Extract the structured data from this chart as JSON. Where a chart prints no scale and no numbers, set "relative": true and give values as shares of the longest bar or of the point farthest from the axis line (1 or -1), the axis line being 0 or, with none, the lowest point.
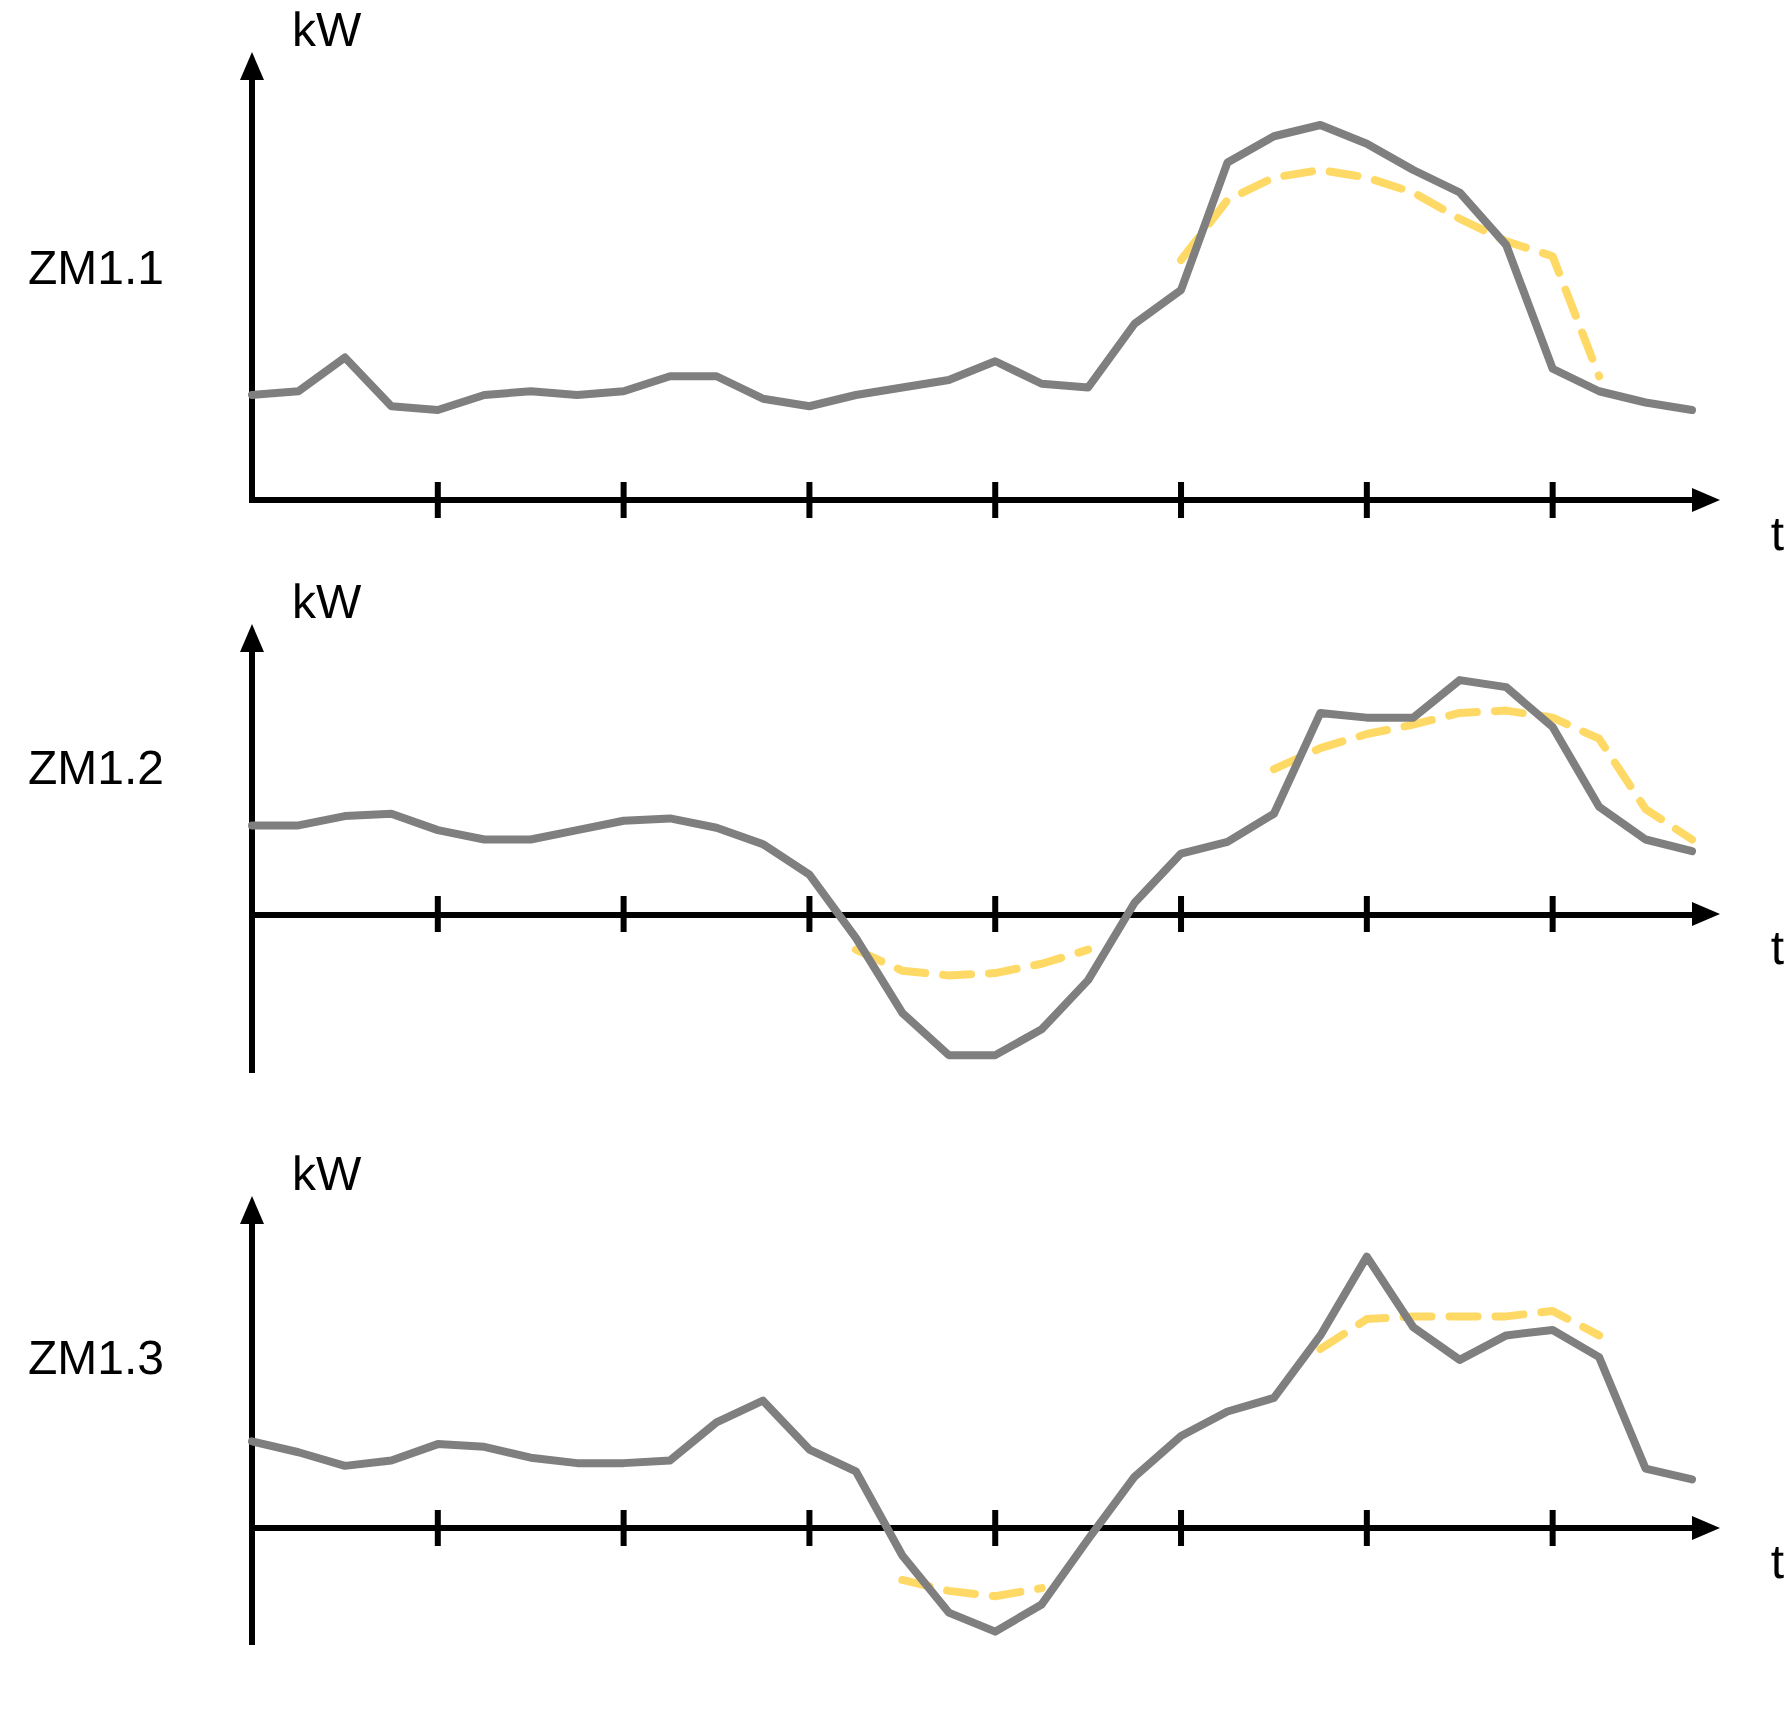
{
  "chart_data": [
    {
      "type": "line",
      "title": "ZM1.1",
      "ylabel": "kW",
      "xlabel": "t",
      "relative": true,
      "grid": false,
      "legend": false,
      "marker": "none",
      "categories": [
        null,
        null,
        null,
        null,
        null,
        null,
        null,
        null,
        null,
        null,
        null,
        null,
        null,
        null,
        null,
        null,
        null,
        null,
        null,
        null,
        null,
        null,
        null,
        null,
        null,
        null,
        null,
        null,
        null,
        null,
        null,
        null
      ],
      "series": [
        {
          "color": "#7f7f7f",
          "line_style": "solid",
          "values": [
            0.28,
            0.29,
            0.38,
            0.25,
            0.24,
            0.28,
            0.29,
            0.28,
            0.29,
            0.33,
            0.33,
            0.27,
            0.25,
            0.28,
            0.3,
            0.32,
            0.37,
            0.31,
            0.3,
            0.47,
            0.56,
            0.9,
            0.97,
            1.0,
            0.95,
            0.88,
            0.82,
            0.68,
            0.35,
            0.29,
            0.26,
            0.24
          ]
        },
        {
          "color": "#ffd966",
          "line_style": "dashed",
          "values": [
            null,
            null,
            null,
            null,
            null,
            null,
            null,
            null,
            null,
            null,
            null,
            null,
            null,
            null,
            null,
            null,
            null,
            null,
            null,
            null,
            0.64,
            0.8,
            0.86,
            0.88,
            0.86,
            0.82,
            0.75,
            0.69,
            0.65,
            0.33,
            null,
            null
          ]
        }
      ]
    },
    {
      "type": "line",
      "title": "ZM1.2",
      "ylabel": "kW",
      "xlabel": "t",
      "relative": true,
      "grid": false,
      "legend": false,
      "marker": "none",
      "categories": [
        null,
        null,
        null,
        null,
        null,
        null,
        null,
        null,
        null,
        null,
        null,
        null,
        null,
        null,
        null,
        null,
        null,
        null,
        null,
        null,
        null,
        null,
        null,
        null,
        null,
        null,
        null,
        null,
        null,
        null,
        null,
        null
      ],
      "series": [
        {
          "color": "#7f7f7f",
          "line_style": "solid",
          "values": [
            0.38,
            0.38,
            0.42,
            0.43,
            0.36,
            0.32,
            0.32,
            0.36,
            0.4,
            0.41,
            0.37,
            0.3,
            0.17,
            -0.1,
            -0.42,
            -0.6,
            -0.6,
            -0.49,
            -0.28,
            0.05,
            0.26,
            0.31,
            0.43,
            0.86,
            0.84,
            0.84,
            1.0,
            0.97,
            0.8,
            0.46,
            0.32,
            0.27
          ]
        },
        {
          "color": "#ffd966",
          "line_style": "dashed",
          "values": [
            null,
            null,
            null,
            null,
            null,
            null,
            null,
            null,
            null,
            null,
            null,
            null,
            null,
            -0.15,
            -0.24,
            -0.26,
            -0.25,
            -0.21,
            -0.15,
            null,
            null,
            null,
            null,
            null,
            null,
            null,
            null,
            null,
            null,
            null,
            null,
            null
          ]
        },
        {
          "color": "#ffd966",
          "line_style": "dashed",
          "values": [
            null,
            null,
            null,
            null,
            null,
            null,
            null,
            null,
            null,
            null,
            null,
            null,
            null,
            null,
            null,
            null,
            null,
            null,
            null,
            null,
            null,
            null,
            0.62,
            0.71,
            0.77,
            0.81,
            0.86,
            0.87,
            0.84,
            0.75,
            0.45,
            0.32
          ]
        }
      ]
    },
    {
      "type": "line",
      "title": "ZM1.3",
      "ylabel": "kW",
      "xlabel": "t",
      "relative": true,
      "grid": false,
      "legend": false,
      "marker": "none",
      "categories": [
        null,
        null,
        null,
        null,
        null,
        null,
        null,
        null,
        null,
        null,
        null,
        null,
        null,
        null,
        null,
        null,
        null,
        null,
        null,
        null,
        null,
        null,
        null,
        null,
        null,
        null,
        null,
        null,
        null,
        null,
        null,
        null
      ],
      "series": [
        {
          "color": "#7f7f7f",
          "line_style": "solid",
          "values": [
            0.32,
            0.28,
            0.23,
            0.25,
            0.31,
            0.3,
            0.26,
            0.24,
            0.24,
            0.25,
            0.39,
            0.47,
            0.29,
            0.21,
            -0.1,
            -0.31,
            -0.38,
            -0.28,
            -0.04,
            0.19,
            0.34,
            0.43,
            0.48,
            0.71,
            1.0,
            0.74,
            0.62,
            0.71,
            0.73,
            0.63,
            0.22,
            0.18
          ]
        },
        {
          "color": "#ffd966",
          "line_style": "dashed",
          "values": [
            null,
            null,
            null,
            null,
            null,
            null,
            null,
            null,
            null,
            null,
            null,
            null,
            null,
            null,
            -0.19,
            -0.23,
            -0.25,
            -0.22,
            null,
            null,
            null,
            null,
            null,
            null,
            null,
            null,
            null,
            null,
            null,
            null,
            null,
            null
          ]
        },
        {
          "color": "#ffd966",
          "line_style": "dashed",
          "values": [
            null,
            null,
            null,
            null,
            null,
            null,
            null,
            null,
            null,
            null,
            null,
            null,
            null,
            null,
            null,
            null,
            null,
            null,
            null,
            null,
            null,
            null,
            null,
            0.66,
            0.77,
            0.78,
            0.78,
            0.78,
            0.8,
            0.71,
            null,
            null
          ]
        }
      ]
    }
  ]
}
